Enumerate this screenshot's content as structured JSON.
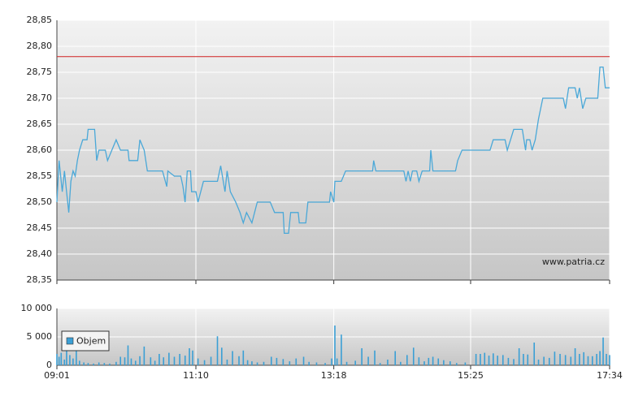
{
  "chart_data": [
    {
      "type": "line",
      "xlim": [
        541,
        1054
      ],
      "xticks": [
        541,
        670,
        798,
        925,
        1054
      ],
      "ylim": [
        28.35,
        28.85
      ],
      "yticks": [
        {
          "value": 28.35,
          "label": "28,35"
        },
        {
          "value": 28.4,
          "label": "28,40"
        },
        {
          "value": 28.45,
          "label": "28,45"
        },
        {
          "value": 28.5,
          "label": "28,50"
        },
        {
          "value": 28.55,
          "label": "28,55"
        },
        {
          "value": 28.6,
          "label": "28,60"
        },
        {
          "value": 28.65,
          "label": "28,65"
        },
        {
          "value": 28.7,
          "label": "28,70"
        },
        {
          "value": 28.75,
          "label": "28,75"
        },
        {
          "value": 28.8,
          "label": "28,80"
        },
        {
          "value": 28.85,
          "label": "28,85"
        }
      ],
      "grid": true,
      "reference_line": {
        "value": 28.78,
        "color": "#d02020"
      },
      "watermark": "www.patria.cz",
      "x": [
        541,
        543,
        546,
        548,
        550,
        552,
        554,
        556,
        558,
        560,
        562,
        565,
        569,
        570,
        576,
        578,
        580,
        586,
        588,
        592,
        596,
        600,
        607,
        608,
        616,
        618,
        622,
        625,
        639,
        643,
        644,
        650,
        656,
        658,
        660,
        662,
        665,
        666,
        670,
        672,
        677,
        690,
        693,
        697,
        699,
        702,
        707,
        711,
        714,
        717,
        722,
        727,
        739,
        743,
        751,
        752,
        756,
        758,
        765,
        766,
        772,
        774,
        794,
        795,
        798,
        799,
        805,
        809,
        834,
        835,
        837,
        863,
        865,
        867,
        869,
        871,
        875,
        877,
        880,
        887,
        888,
        890,
        911,
        913,
        917,
        943,
        946,
        957,
        959,
        962,
        965,
        973,
        976,
        977,
        980,
        982,
        985,
        988,
        992,
        1011,
        1013,
        1016,
        1022,
        1024,
        1026,
        1029,
        1032,
        1043,
        1045,
        1048,
        1050,
        1054
      ],
      "series": [
        {
          "color": "#4aa8d8",
          "values": [
            28.5,
            28.58,
            28.52,
            28.56,
            28.52,
            28.48,
            28.54,
            28.56,
            28.55,
            28.58,
            28.6,
            28.62,
            28.62,
            28.64,
            28.64,
            28.58,
            28.6,
            28.6,
            28.58,
            28.6,
            28.62,
            28.6,
            28.6,
            28.58,
            28.58,
            28.62,
            28.6,
            28.56,
            28.56,
            28.53,
            28.56,
            28.55,
            28.55,
            28.53,
            28.5,
            28.56,
            28.56,
            28.52,
            28.52,
            28.5,
            28.54,
            28.54,
            28.57,
            28.52,
            28.56,
            28.52,
            28.5,
            28.48,
            28.46,
            28.48,
            28.46,
            28.5,
            28.5,
            28.48,
            28.48,
            28.44,
            28.44,
            28.48,
            28.48,
            28.46,
            28.46,
            28.5,
            28.5,
            28.52,
            28.5,
            28.54,
            28.54,
            28.56,
            28.56,
            28.58,
            28.56,
            28.56,
            28.54,
            28.56,
            28.54,
            28.56,
            28.56,
            28.54,
            28.56,
            28.56,
            28.6,
            28.56,
            28.56,
            28.58,
            28.6,
            28.6,
            28.62,
            28.62,
            28.6,
            28.62,
            28.64,
            28.64,
            28.6,
            28.62,
            28.62,
            28.6,
            28.62,
            28.66,
            28.7,
            28.7,
            28.68,
            28.72,
            28.72,
            28.7,
            28.72,
            28.68,
            28.7,
            28.7,
            28.76,
            28.76,
            28.72,
            28.72
          ]
        }
      ]
    },
    {
      "type": "bar",
      "xlim": [
        541,
        1054
      ],
      "xticks": [
        {
          "value": 541,
          "label": "09:01"
        },
        {
          "value": 670,
          "label": "11:10"
        },
        {
          "value": 798,
          "label": "13:18"
        },
        {
          "value": 925,
          "label": "15:25"
        },
        {
          "value": 1054,
          "label": "17:34"
        }
      ],
      "ylim": [
        0,
        10000
      ],
      "yticks": [
        0,
        {
          "value": 5000,
          "label": "5 000"
        },
        {
          "value": 10000,
          "label": "10 000"
        }
      ],
      "grid": true,
      "legend": "lower-left",
      "x": [
        541,
        543,
        545,
        548,
        550,
        553,
        556,
        559,
        562,
        566,
        570,
        575,
        580,
        585,
        590,
        596,
        600,
        604,
        607,
        610,
        614,
        618,
        622,
        628,
        632,
        636,
        640,
        645,
        650,
        655,
        660,
        664,
        667,
        672,
        678,
        684,
        690,
        694,
        699,
        704,
        710,
        714,
        718,
        722,
        727,
        733,
        740,
        745,
        751,
        757,
        763,
        770,
        775,
        782,
        790,
        796,
        799,
        801,
        805,
        810,
        818,
        824,
        830,
        836,
        841,
        848,
        855,
        860,
        866,
        872,
        877,
        882,
        886,
        890,
        895,
        900,
        906,
        912,
        920,
        930,
        934,
        938,
        942,
        946,
        950,
        955,
        960,
        965,
        970,
        974,
        978,
        984,
        988,
        993,
        998,
        1003,
        1008,
        1013,
        1018,
        1022,
        1026,
        1030,
        1034,
        1038,
        1042,
        1045,
        1048,
        1051,
        1054
      ],
      "series": [
        {
          "name": "Objem",
          "color": "#3a9fd5",
          "values": [
            2000,
            1500,
            2200,
            1000,
            2500,
            1800,
            1200,
            3000,
            800,
            500,
            400,
            300,
            500,
            400,
            300,
            600,
            1500,
            1400,
            3500,
            1200,
            800,
            1600,
            3300,
            1400,
            800,
            2000,
            1400,
            2200,
            1500,
            2000,
            1700,
            3000,
            2600,
            1200,
            900,
            1500,
            5100,
            3100,
            1000,
            2500,
            1600,
            2600,
            900,
            700,
            500,
            600,
            1500,
            1300,
            1100,
            700,
            1200,
            1500,
            600,
            500,
            400,
            1200,
            7000,
            1200,
            5400,
            600,
            800,
            3000,
            1500,
            2600,
            400,
            1000,
            2500,
            600,
            1800,
            3100,
            1400,
            700,
            1300,
            1500,
            1200,
            900,
            700,
            400,
            500,
            2000,
            2000,
            2200,
            1700,
            2100,
            1700,
            1800,
            1300,
            1100,
            3000,
            2000,
            1900,
            4000,
            1000,
            1500,
            1300,
            2400,
            2000,
            1800,
            1500,
            3000,
            2000,
            2300,
            1600,
            1600,
            2000,
            2500,
            4900,
            2000,
            1800
          ]
        }
      ]
    }
  ]
}
